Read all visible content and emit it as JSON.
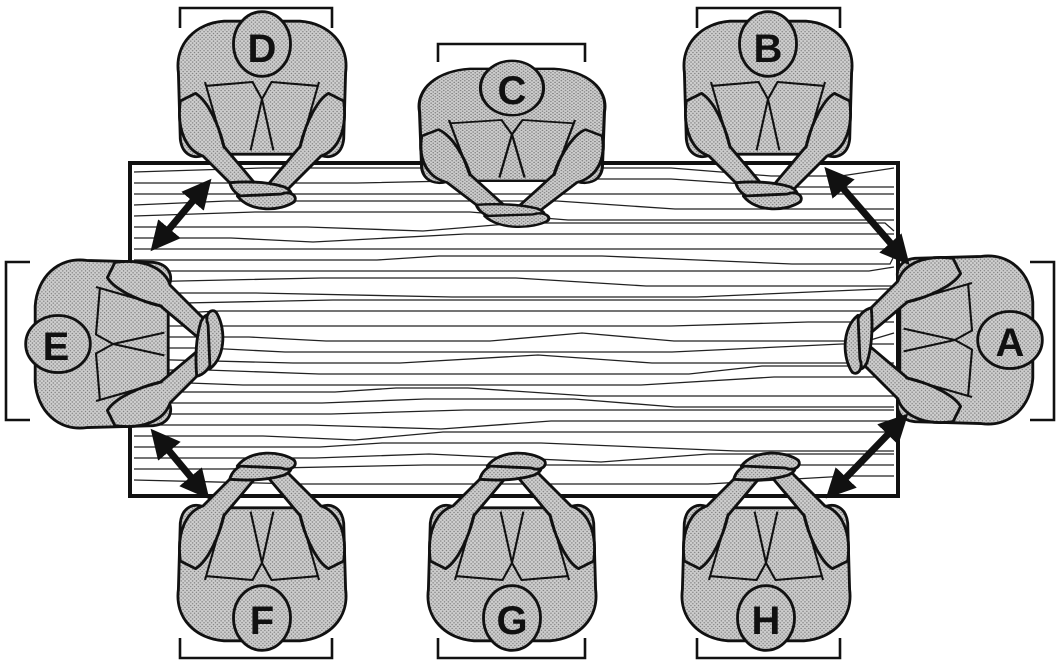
{
  "diagram": {
    "seats": [
      {
        "id": "A",
        "label": "A"
      },
      {
        "id": "B",
        "label": "B"
      },
      {
        "id": "C",
        "label": "C"
      },
      {
        "id": "D",
        "label": "D"
      },
      {
        "id": "E",
        "label": "E"
      },
      {
        "id": "F",
        "label": "F"
      },
      {
        "id": "G",
        "label": "G"
      },
      {
        "id": "H",
        "label": "H"
      }
    ],
    "colors": {
      "ink": "#111111",
      "skin": "#c8c8c8",
      "background": "#ffffff"
    },
    "icons": {
      "table": "conference-table-icon",
      "person": "seated-person-icon",
      "chair": "chair-icon",
      "arrow": "double-headed-arrow-icon"
    },
    "arrows_count_shown": 4
  }
}
